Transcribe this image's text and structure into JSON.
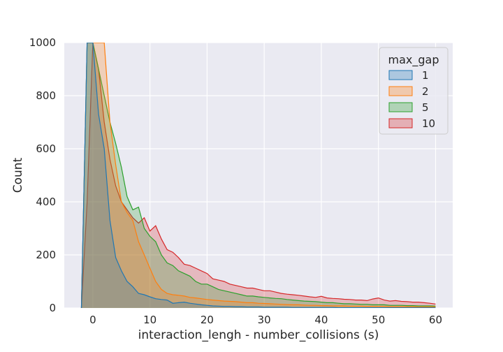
{
  "chart_data": {
    "type": "area",
    "xlabel": "interaction_lengh - number_collisions (s)",
    "ylabel": "Count",
    "xlim": [
      -5,
      63
    ],
    "ylim": [
      0,
      1000
    ],
    "xticks": [
      0,
      10,
      20,
      30,
      40,
      50,
      60
    ],
    "yticks": [
      0,
      200,
      400,
      600,
      800,
      1000
    ],
    "grid": true,
    "legend": {
      "title": "max_gap",
      "position": "top-right"
    },
    "series": [
      {
        "name": "10",
        "color": "#d62728",
        "x": [
          -2,
          -1,
          0,
          1,
          2,
          3,
          4,
          5,
          6,
          7,
          8,
          9,
          10,
          11,
          12,
          13,
          14,
          15,
          16,
          17,
          18,
          19,
          20,
          21,
          22,
          23,
          24,
          25,
          26,
          27,
          28,
          29,
          30,
          31,
          32,
          33,
          34,
          35,
          36,
          37,
          38,
          39,
          40,
          41,
          42,
          43,
          44,
          45,
          46,
          47,
          48,
          49,
          50,
          51,
          52,
          53,
          54,
          55,
          56,
          57,
          58,
          59,
          60
        ],
        "values": [
          0,
          400,
          1000,
          900,
          700,
          560,
          460,
          400,
          370,
          340,
          320,
          340,
          290,
          310,
          260,
          220,
          210,
          190,
          165,
          160,
          150,
          140,
          130,
          110,
          105,
          100,
          90,
          85,
          80,
          75,
          75,
          70,
          65,
          65,
          60,
          55,
          52,
          50,
          48,
          45,
          42,
          40,
          44,
          38,
          36,
          35,
          33,
          32,
          30,
          30,
          28,
          34,
          38,
          30,
          26,
          28,
          25,
          24,
          22,
          22,
          20,
          18,
          15
        ]
      },
      {
        "name": "5",
        "color": "#2ca02c",
        "x": [
          -2,
          -1,
          0,
          1,
          2,
          3,
          4,
          5,
          6,
          7,
          8,
          9,
          10,
          11,
          12,
          13,
          14,
          15,
          16,
          17,
          18,
          19,
          20,
          21,
          22,
          23,
          24,
          25,
          26,
          27,
          28,
          29,
          30,
          31,
          32,
          33,
          34,
          35,
          36,
          37,
          38,
          39,
          40,
          41,
          42,
          43,
          44,
          45,
          46,
          47,
          48,
          49,
          50,
          51,
          52,
          53,
          54,
          55,
          56,
          57,
          58,
          59,
          60
        ],
        "values": [
          0,
          1000,
          1000,
          900,
          800,
          700,
          620,
          530,
          420,
          370,
          380,
          300,
          270,
          250,
          200,
          170,
          160,
          140,
          130,
          120,
          100,
          90,
          90,
          80,
          70,
          65,
          60,
          55,
          50,
          45,
          45,
          42,
          40,
          38,
          36,
          35,
          32,
          30,
          28,
          26,
          25,
          24,
          22,
          20,
          20,
          18,
          16,
          16,
          15,
          14,
          14,
          12,
          12,
          12,
          10,
          10,
          10,
          9,
          9,
          8,
          8,
          8,
          7
        ]
      },
      {
        "name": "2",
        "color": "#ff7f0e",
        "x": [
          -2,
          -1,
          0,
          1,
          2,
          3,
          4,
          5,
          6,
          7,
          8,
          9,
          10,
          11,
          12,
          13,
          14,
          15,
          16,
          17,
          18,
          19,
          20,
          21,
          22,
          23,
          24,
          25,
          26,
          27,
          28,
          29,
          30,
          31,
          32,
          33,
          34,
          35,
          36,
          37,
          38,
          39,
          40,
          41,
          42,
          43,
          44,
          45,
          46,
          47,
          48,
          49,
          50,
          51,
          52,
          53,
          54,
          55,
          56,
          57,
          58,
          59,
          60
        ],
        "values": [
          0,
          1000,
          1000,
          1000,
          1000,
          700,
          540,
          400,
          360,
          330,
          250,
          200,
          150,
          100,
          70,
          55,
          50,
          48,
          45,
          40,
          38,
          35,
          32,
          30,
          28,
          26,
          25,
          24,
          22,
          20,
          20,
          18,
          17,
          16,
          15,
          14,
          13,
          12,
          12,
          11,
          10,
          10,
          9,
          9,
          8,
          8,
          8,
          7,
          7,
          7,
          6,
          6,
          6,
          6,
          5,
          5,
          5,
          5,
          5,
          4,
          4,
          4,
          4
        ]
      },
      {
        "name": "1",
        "color": "#1f77b4",
        "x": [
          -2,
          -1,
          0,
          1,
          2,
          3,
          4,
          5,
          6,
          7,
          8,
          9,
          10,
          11,
          12,
          13,
          14,
          15,
          16,
          17,
          18,
          19,
          20,
          21,
          22,
          23,
          24,
          25,
          26,
          27,
          28,
          29,
          30,
          31,
          32,
          33,
          34,
          35,
          36,
          37,
          38,
          39,
          40,
          41,
          42,
          43,
          44,
          45,
          46,
          47,
          48,
          49,
          50,
          51,
          52,
          53,
          54,
          55,
          56,
          57,
          58,
          59,
          60
        ],
        "values": [
          0,
          1000,
          1000,
          730,
          600,
          330,
          190,
          140,
          100,
          80,
          55,
          50,
          42,
          35,
          32,
          30,
          18,
          20,
          22,
          18,
          15,
          12,
          10,
          8,
          7,
          6,
          6,
          5,
          5,
          4,
          4,
          4,
          3,
          3,
          3,
          3,
          3,
          2,
          2,
          2,
          2,
          2,
          2,
          2,
          2,
          1,
          1,
          1,
          1,
          1,
          1,
          1,
          1,
          1,
          1,
          1,
          1,
          1,
          1,
          1,
          1,
          1,
          1
        ]
      }
    ]
  }
}
